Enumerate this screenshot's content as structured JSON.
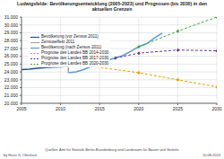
{
  "chart_data": {
    "type": "line",
    "title": "Ludwigsfelde: Bevölkerungsentwicklung (2005-2023) und Prognosen (bis 2030) in den aktuellen Grenzen",
    "source": "Quellen: Amt für Statistik Berlin-Brandenburg und Landesamt für Bauen und Verkehr",
    "author": "by Hans G. Oberlack",
    "date": "10.08.2024",
    "xlim": [
      2005,
      2030
    ],
    "xticks": [
      2005,
      2010,
      2015,
      2020,
      2025,
      2030
    ],
    "ylim": [
      20000,
      31000
    ],
    "yticks": [
      {
        "value": 20000,
        "label": "20.000"
      },
      {
        "value": 21000,
        "label": "21.000"
      },
      {
        "value": 22000,
        "label": "22.000"
      },
      {
        "value": 23000,
        "label": "23.000"
      },
      {
        "value": 24000,
        "label": "24.000"
      },
      {
        "value": 25000,
        "label": "25.000"
      },
      {
        "value": 26000,
        "label": "26.000"
      },
      {
        "value": 27000,
        "label": "27.000"
      },
      {
        "value": 28000,
        "label": "28.000"
      },
      {
        "value": 29000,
        "label": "29.000"
      },
      {
        "value": 30000,
        "label": "30.000"
      },
      {
        "value": 31000,
        "label": "31.000"
      }
    ],
    "grid": true,
    "legend": "upper left",
    "series": [
      {
        "name": "Bevölkerung (vor Zensus 2011)",
        "color": "#1f4e9c",
        "line_style": "solid",
        "marker": "none",
        "x": [
          2005,
          2006,
          2007,
          2008,
          2009,
          2010,
          2011
        ],
        "values": [
          24288,
          24350,
          24460,
          24547,
          24600,
          24635,
          24700
        ]
      },
      {
        "name": "Zensuseffekt 2011",
        "color": "#a0a0a0",
        "line_style": "solid",
        "marker": "none",
        "x": [
          2011,
          2011
        ],
        "values": [
          24700,
          23905
        ]
      },
      {
        "name": "Bevölkerung (nach Zensus 2011)",
        "color": "#5b9bd5",
        "line_style": "solid",
        "marker": "none",
        "x": [
          2011,
          2012,
          2013,
          2014,
          2015,
          2016,
          2017,
          2018,
          2019,
          2020,
          2021,
          2022,
          2023
        ],
        "values": [
          23905,
          24002,
          24326,
          24722,
          25155,
          25479,
          25776,
          26108,
          26636,
          27219,
          27586,
          28310,
          28950
        ]
      },
      {
        "name": "Prognose des Landes BB 2014-2030",
        "color": "#e0a000",
        "line_style": "dashed",
        "marker": "circle",
        "x": [
          2014,
          2020,
          2025,
          2030
        ],
        "values": [
          24722,
          23900,
          23000,
          22100
        ]
      },
      {
        "name": "Prognose des Landes BB 2017-2030",
        "color": "#7030a0",
        "line_style": "dashed",
        "marker": "circle",
        "x": [
          2017,
          2020,
          2025,
          2030
        ],
        "values": [
          25776,
          26400,
          26800,
          26700
        ]
      },
      {
        "name": "Prognose des Landes BB 2020-2030",
        "color": "#3caa3c",
        "line_style": "dashed",
        "marker": "circle",
        "x": [
          2020,
          2025,
          2030
        ],
        "values": [
          27219,
          29200,
          31000
        ]
      }
    ]
  }
}
